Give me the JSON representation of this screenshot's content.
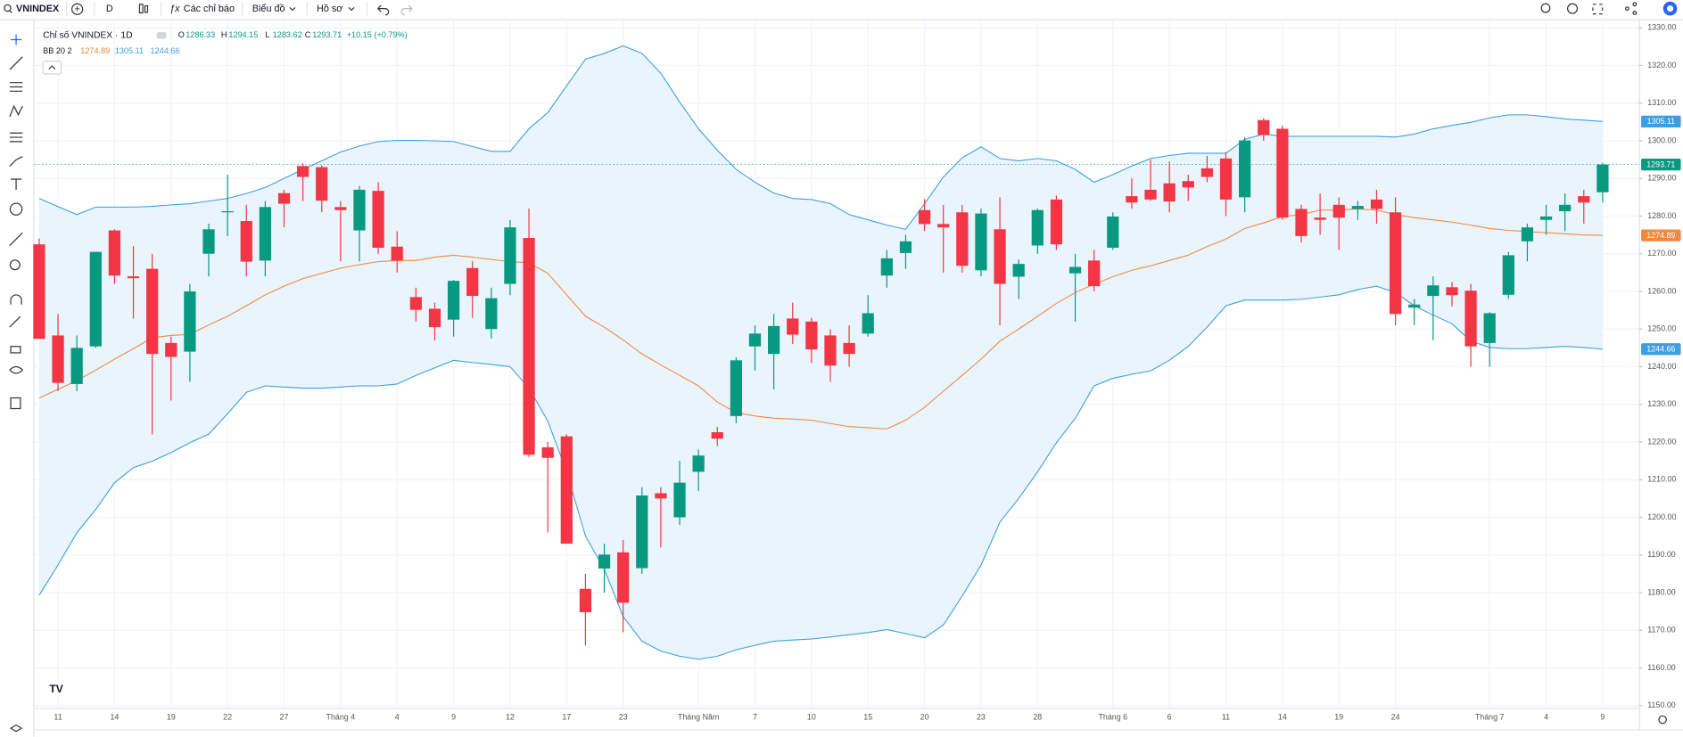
{
  "toolbar": {
    "symbol": "VNINDEX",
    "interval": "D",
    "indicators": "Các chỉ báo",
    "chart": "Biểu đồ",
    "profile": "Hồ sơ"
  },
  "chart_data": {
    "type": "candlestick",
    "title": "Chỉ số VNINDEX · 1D",
    "ohlc_letters": [
      "O",
      "H",
      "L",
      "C"
    ],
    "change_label": "+10.15 (+0.79%)",
    "indicator_label": "BB 20 2",
    "up_color": "#089981",
    "down_color": "#f23645",
    "grid": true,
    "categories": [
      null,
      "11",
      null,
      null,
      "14",
      null,
      null,
      "19",
      null,
      null,
      "22",
      null,
      null,
      "27",
      null,
      null,
      "Tháng 4",
      null,
      null,
      "4",
      null,
      null,
      "9",
      null,
      null,
      "12",
      null,
      null,
      "17",
      null,
      null,
      "23",
      null,
      null,
      null,
      "Tháng Năm",
      null,
      null,
      "7",
      null,
      null,
      "10",
      null,
      null,
      "15",
      null,
      null,
      "20",
      null,
      null,
      "23",
      null,
      null,
      "28",
      null,
      null,
      null,
      "Tháng 6",
      null,
      null,
      "6",
      null,
      null,
      "11",
      null,
      null,
      "14",
      null,
      null,
      "19",
      null,
      null,
      "24",
      null,
      null,
      null,
      null,
      "Tháng 7",
      null,
      null,
      "4",
      null,
      null,
      "9"
    ],
    "open": [
      1272.5,
      1248.3,
      1235.4,
      1245.4,
      1276.2,
      1264,
      1266,
      1246.3,
      1244,
      1270,
      1281,
      1278.7,
      1268.2,
      1286.1,
      1293.3,
      1293,
      1282.4,
      1276.2,
      1286.7,
      1271.9,
      1258.5,
      1255.4,
      1252.5,
      1266.2,
      1250,
      1262,
      1274.2,
      1218.6,
      1221.5,
      1181,
      1186.4,
      1190.7,
      1186.5,
      1206.4,
      1200,
      1212.1,
      1222.6,
      1226.9,
      1245.4,
      1243.4,
      1252.8,
      1252,
      1248.3,
      1246.3,
      1248.8,
      1264.2,
      1270.2,
      1281.6,
      1277.9,
      1281,
      1265.6,
      1276.5,
      1263.9,
      1272.2,
      1284.4,
      1264.8,
      1268.2,
      1271.6,
      1285.3,
      1287,
      1288.7,
      1289.3,
      1292.7,
      1295.3,
      1285,
      1305.5,
      1303.2,
      1281.9,
      1279.6,
      1283,
      1281.9,
      1284.4,
      1281,
      1255.7,
      1258.8,
      1261.1,
      1260.2,
      1246.3,
      1259.1,
      1273.3,
      1279,
      1281.3,
      1285.3,
      1286.33
    ],
    "high": [
      1274,
      1254,
      1248.3,
      1270.5,
      1276.5,
      1272,
      1270,
      1248,
      1262,
      1278,
      1291,
      1283,
      1284,
      1287,
      1294,
      1293.5,
      1284,
      1288,
      1289,
      1276,
      1261,
      1257,
      1263,
      1268,
      1261,
      1279,
      1282,
      1220,
      1222,
      1185,
      1193,
      1194,
      1208,
      1208,
      1215,
      1218,
      1224,
      1242.5,
      1251,
      1254,
      1257,
      1253,
      1250,
      1251,
      1259,
      1271,
      1275,
      1284.5,
      1283,
      1283,
      1282,
      1285,
      1268.5,
      1282,
      1285.5,
      1270,
      1271,
      1281,
      1290,
      1295,
      1294.5,
      1291,
      1296,
      1297,
      1301,
      1306,
      1304,
      1283,
      1286,
      1285,
      1284,
      1287,
      1285,
      1258,
      1264,
      1262.5,
      1262,
      1254.5,
      1270.5,
      1278,
      1283,
      1286,
      1287,
      1294.15
    ],
    "low": [
      1247.4,
      1233.5,
      1233.5,
      1245,
      1262,
      1252.8,
      1222,
      1231,
      1236,
      1264,
      1274.7,
      1264,
      1264,
      1277,
      1284,
      1281,
      1268,
      1268,
      1270,
      1265,
      1252,
      1247,
      1248,
      1253,
      1247.5,
      1259,
      1216,
      1196,
      1193,
      1166,
      1180,
      1169.5,
      1185,
      1192,
      1198,
      1207,
      1219,
      1225,
      1239,
      1234,
      1246,
      1241,
      1236,
      1240,
      1248,
      1261,
      1266,
      1276,
      1265,
      1265,
      1264,
      1251,
      1258,
      1270,
      1271,
      1252,
      1260,
      1271,
      1282,
      1284,
      1281,
      1284,
      1289,
      1280,
      1281,
      1300,
      1279,
      1273,
      1275,
      1271,
      1279,
      1278,
      1251,
      1251,
      1247,
      1256,
      1240,
      1240,
      1258,
      1268,
      1275,
      1276,
      1278,
      1283.62
    ],
    "close": [
      1247.4,
      1235.7,
      1245,
      1270.5,
      1264.2,
      1263.5,
      1243.4,
      1242.6,
      1260,
      1276.5,
      1281.3,
      1267.9,
      1282.4,
      1283.3,
      1290.4,
      1284.1,
      1281.6,
      1287,
      1271.6,
      1268.2,
      1255.1,
      1250.5,
      1262.8,
      1258.8,
      1258.2,
      1277,
      1216.6,
      1215.8,
      1193,
      1174.8,
      1190.1,
      1177.3,
      1205.8,
      1205,
      1209.2,
      1216.4,
      1220.9,
      1241.7,
      1248.8,
      1250.8,
      1248.5,
      1244.6,
      1240.3,
      1243.4,
      1254.2,
      1268.8,
      1273.3,
      1277.9,
      1277,
      1266.8,
      1280.7,
      1262,
      1267.3,
      1281.6,
      1272.5,
      1266.5,
      1261.4,
      1279.9,
      1283.6,
      1284.4,
      1283.9,
      1287.6,
      1290.4,
      1284.4,
      1300.1,
      1301.5,
      1279.6,
      1274.7,
      1279,
      1279.6,
      1282.7,
      1281.9,
      1254,
      1256.5,
      1261.6,
      1259,
      1245.4,
      1254.2,
      1269.6,
      1277,
      1279.9,
      1283,
      1283.6,
      1293.71
    ],
    "series": [
      {
        "color": "#f0883e",
        "values": [
          1231.7,
          1234,
          1236.3,
          1239.1,
          1242,
          1244.8,
          1247.7,
          1248.3,
          1248.6,
          1251.1,
          1253.4,
          1256.2,
          1259.1,
          1261.4,
          1263.4,
          1264.8,
          1266.2,
          1267.1,
          1267.9,
          1268.2,
          1268.2,
          1269.1,
          1269.6,
          1269.1,
          1268.5,
          1267.9,
          1267.6,
          1264.8,
          1259.1,
          1253.4,
          1250.5,
          1247.1,
          1243.4,
          1240.5,
          1237.7,
          1234.9,
          1230.6,
          1227.8,
          1226.9,
          1226.3,
          1226.1,
          1225.8,
          1224.9,
          1224.1,
          1223.8,
          1223.5,
          1225.8,
          1229.2,
          1233.5,
          1237.7,
          1242,
          1246.8,
          1250,
          1253.4,
          1256.8,
          1259.7,
          1261.9,
          1263.9,
          1265.6,
          1266.8,
          1268.2,
          1269.6,
          1271.9,
          1273.9,
          1276.7,
          1278.2,
          1279.9,
          1280.4,
          1281.6,
          1281.6,
          1281.9,
          1281.6,
          1280.4,
          1279.6,
          1279,
          1278.4,
          1277.6,
          1276.7,
          1276.2,
          1275.9,
          1275.6,
          1275.3,
          1275,
          1274.89
        ]
      },
      {
        "color": "#3d9ee0",
        "values": [
          1284.7,
          1282.5,
          1280.4,
          1282.4,
          1282.4,
          1282.4,
          1282.6,
          1283,
          1283.3,
          1284,
          1284.7,
          1286,
          1287.6,
          1290,
          1292.4,
          1294.7,
          1297,
          1298.6,
          1299.8,
          1300.1,
          1300.1,
          1300,
          1299.8,
          1298.5,
          1297.2,
          1297.2,
          1303.2,
          1307.5,
          1314.6,
          1321.7,
          1323.2,
          1325.2,
          1323.2,
          1318,
          1310.3,
          1303.2,
          1297.5,
          1292.4,
          1289,
          1286.1,
          1284.7,
          1284.4,
          1283.3,
          1280.4,
          1279,
          1277.6,
          1276.5,
          1283.3,
          1290.4,
          1295.5,
          1298.4,
          1295.3,
          1294.7,
          1295.3,
          1294.7,
          1292.4,
          1289,
          1291,
          1293.3,
          1295.3,
          1296.1,
          1296.7,
          1296.7,
          1296.7,
          1300.4,
          1301.8,
          1301.2,
          1301.2,
          1301.2,
          1301.2,
          1301.2,
          1301.2,
          1301,
          1301.8,
          1303.2,
          1304.1,
          1304.9,
          1306.1,
          1306.9,
          1306.9,
          1306.4,
          1305.8,
          1305.5,
          1305.11
        ]
      },
      {
        "color": "#3d9ee0",
        "values": [
          1179.3,
          1187.3,
          1195.9,
          1202.1,
          1209.2,
          1213.2,
          1214.9,
          1217.2,
          1219.8,
          1222.1,
          1227.5,
          1233.2,
          1234.9,
          1234.6,
          1234.3,
          1234.3,
          1234.6,
          1234.9,
          1234.9,
          1235.4,
          1237.7,
          1239.7,
          1241.7,
          1241.1,
          1240.6,
          1240,
          1234.3,
          1225.5,
          1212.1,
          1195,
          1186.2,
          1173.6,
          1167.1,
          1164.5,
          1163.1,
          1162.3,
          1163.1,
          1164.8,
          1166,
          1167.1,
          1167.4,
          1167.7,
          1168.2,
          1168.8,
          1169.4,
          1170.2,
          1169.1,
          1168,
          1171.4,
          1179.1,
          1187.3,
          1198.7,
          1205,
          1212.1,
          1219.8,
          1226.3,
          1234.9,
          1236.9,
          1238,
          1238.9,
          1241.7,
          1245.4,
          1250.5,
          1256.2,
          1257.7,
          1257.7,
          1257.7,
          1257.9,
          1258.5,
          1259.1,
          1260.5,
          1261.4,
          1259.7,
          1256.2,
          1253.7,
          1251.4,
          1246.8,
          1245.1,
          1244.8,
          1244.8,
          1245.1,
          1245.4,
          1245.1,
          1244.66
        ]
      }
    ],
    "band_fill": "#eaf4fc",
    "ylim": [
      1149.4,
      1331.7
    ],
    "yticks": [
      {
        "value": 1150,
        "label": "1150.00"
      },
      {
        "value": 1160,
        "label": "1160.00"
      },
      {
        "value": 1170,
        "label": "1170.00"
      },
      {
        "value": 1180,
        "label": "1180.00"
      },
      {
        "value": 1190,
        "label": "1190.00"
      },
      {
        "value": 1200,
        "label": "1200.00"
      },
      {
        "value": 1210,
        "label": "1210.00"
      },
      {
        "value": 1220,
        "label": "1220.00"
      },
      {
        "value": 1230,
        "label": "1230.00"
      },
      {
        "value": 1240,
        "label": "1240.00"
      },
      {
        "value": 1250,
        "label": "1250.00"
      },
      {
        "value": 1260,
        "label": "1260.00"
      },
      {
        "value": 1270,
        "label": "1270.00"
      },
      {
        "value": 1280,
        "label": "1280.00"
      },
      {
        "value": 1290,
        "label": "1290.00"
      },
      {
        "value": 1300,
        "label": "1300.00"
      },
      {
        "value": 1310,
        "label": "1310.00"
      },
      {
        "value": 1320,
        "label": "1320.00"
      },
      {
        "value": 1330,
        "label": "1330.00"
      }
    ]
  }
}
